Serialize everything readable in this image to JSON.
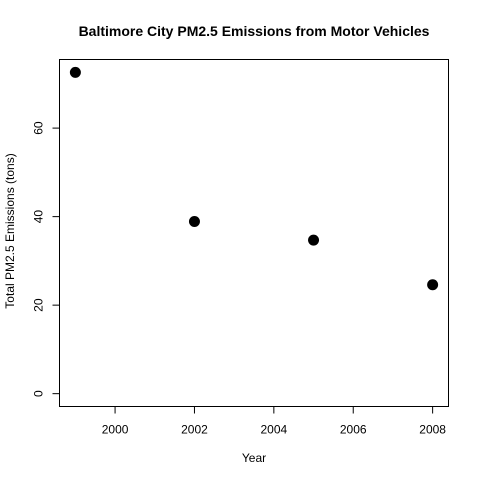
{
  "chart_data": {
    "type": "scatter",
    "title": "Baltimore City PM2.5 Emissions from Motor Vehicles",
    "xlabel": "Year",
    "ylabel": "Total PM2.5 Emissions (tons)",
    "x": [
      1999,
      2002,
      2005,
      2008
    ],
    "y": [
      72.6,
      38.9,
      34.7,
      24.6
    ],
    "xlim": [
      1998.6,
      2008.4
    ],
    "ylim": [
      -2.9,
      75.5
    ],
    "xticks": [
      2000,
      2002,
      2004,
      2006,
      2008
    ],
    "yticks": [
      0,
      20,
      40,
      60
    ],
    "grid": false,
    "marker_color": "#000000"
  }
}
